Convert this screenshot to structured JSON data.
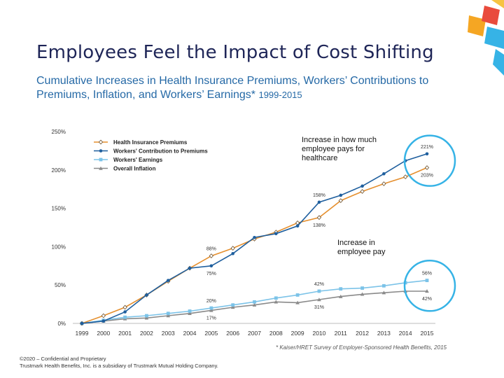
{
  "slide": {
    "title": "Employees Feel the Impact of Cost Shifting",
    "subtitle_main": "Cumulative Increases in Health Insurance Premiums, Workers’ Contributions to Premiums, Inflation, and Workers’ Earnings*",
    "subtitle_years": "1999-2015",
    "callout_healthcare": "Increase in how much employee pays for healthcare",
    "callout_pay": "Increase in employee pay",
    "source": "* Kaiser/HRET Survey of Employer-Sponsored Health Benefits, 2015",
    "footer_line1": "©2020 – Confidential and Proprietary",
    "footer_line2": "Trustmark Health Benefits, Inc. is a subsidiary of Trustmark Mutual Holding Company.",
    "colors": {
      "title": "#1e2557",
      "subtitle": "#2569a6",
      "highlight": "#36b3e6"
    }
  },
  "chart_data": {
    "type": "line",
    "title": "",
    "xlabel": "",
    "ylabel": "",
    "ylim": [
      0,
      250
    ],
    "yticks": [
      0,
      50,
      100,
      150,
      200,
      250
    ],
    "ytick_labels": [
      "0%",
      "50%",
      "100%",
      "150%",
      "200%",
      "250%"
    ],
    "grid": false,
    "legend_position": "top-left",
    "categories": [
      "1999",
      "2000",
      "2001",
      "2002",
      "2003",
      "2004",
      "2005",
      "2006",
      "2007",
      "2008",
      "2009",
      "2010",
      "2011",
      "2012",
      "2013",
      "2014",
      "2015"
    ],
    "series": [
      {
        "name": "Health Insurance Premiums",
        "color": "#e58f2e",
        "marker": "diamond",
        "values": [
          0,
          10,
          21,
          37,
          55,
          72,
          88,
          98,
          110,
          119,
          131,
          138,
          160,
          172,
          182,
          191,
          203
        ]
      },
      {
        "name": "Workers' Contribution to Premiums",
        "color": "#1f5f9e",
        "marker": "circle",
        "values": [
          0,
          3,
          15,
          37,
          56,
          72,
          75,
          91,
          112,
          117,
          127,
          158,
          167,
          179,
          195,
          212,
          221
        ]
      },
      {
        "name": "Workers' Earnings",
        "color": "#7cc3e8",
        "marker": "square",
        "values": [
          0,
          4,
          8,
          10,
          13,
          16,
          20,
          24,
          28,
          33,
          37,
          42,
          45,
          46,
          49,
          53,
          56
        ]
      },
      {
        "name": "Overall Inflation",
        "color": "#8a8a8a",
        "marker": "triangle",
        "values": [
          0,
          3,
          6,
          7,
          10,
          13,
          17,
          21,
          24,
          28,
          27,
          31,
          35,
          38,
          40,
          42,
          42
        ]
      }
    ],
    "annotations": [
      {
        "text": "221%",
        "series": 1,
        "index": 16,
        "pos": "above"
      },
      {
        "text": "203%",
        "series": 0,
        "index": 16,
        "pos": "below"
      },
      {
        "text": "158%",
        "series": 1,
        "index": 11,
        "pos": "above"
      },
      {
        "text": "138%",
        "series": 0,
        "index": 11,
        "pos": "below"
      },
      {
        "text": "88%",
        "series": 0,
        "index": 6,
        "pos": "above"
      },
      {
        "text": "75%",
        "series": 1,
        "index": 6,
        "pos": "below"
      },
      {
        "text": "56%",
        "series": 2,
        "index": 16,
        "pos": "above"
      },
      {
        "text": "42%",
        "series": 3,
        "index": 16,
        "pos": "below"
      },
      {
        "text": "42%",
        "series": 2,
        "index": 11,
        "pos": "above"
      },
      {
        "text": "31%",
        "series": 3,
        "index": 11,
        "pos": "below"
      },
      {
        "text": "20%",
        "series": 2,
        "index": 6,
        "pos": "above"
      },
      {
        "text": "17%",
        "series": 3,
        "index": 6,
        "pos": "below"
      }
    ],
    "highlight_circles": [
      {
        "year": "2015",
        "value": 212,
        "label": "healthcare"
      },
      {
        "year": "2015",
        "value": 49,
        "label": "pay"
      }
    ]
  }
}
